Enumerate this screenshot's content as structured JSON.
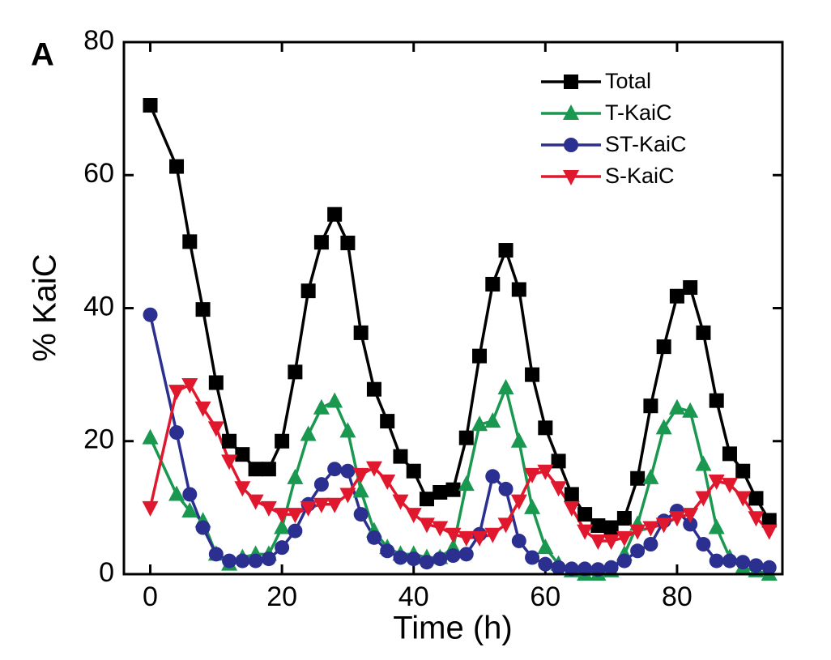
{
  "chart_data": {
    "type": "line",
    "panel_label": "A",
    "x_label": "Time (h)",
    "y_label": "% KaiC",
    "xlim": [
      -4,
      96
    ],
    "ylim": [
      0,
      80
    ],
    "xticks": [
      0,
      20,
      40,
      60,
      80
    ],
    "yticks": [
      0,
      20,
      40,
      60,
      80
    ],
    "legend": "upper right",
    "x": [
      0,
      4,
      6,
      8,
      10,
      12,
      14,
      16,
      18,
      20,
      22,
      24,
      26,
      28,
      30,
      32,
      34,
      36,
      38,
      40,
      42,
      44,
      46,
      48,
      50,
      52,
      54,
      56,
      58,
      60,
      62,
      64,
      66,
      68,
      70,
      72,
      74,
      76,
      78,
      80,
      82,
      84,
      86,
      88,
      90,
      92,
      94
    ],
    "series": [
      {
        "name": "Total",
        "color": "#000000",
        "marker": "square",
        "values": [
          70.5,
          61.3,
          50,
          39.8,
          28.8,
          20,
          18,
          15.8,
          15.8,
          20,
          30.4,
          42.6,
          49.9,
          54.1,
          49.8,
          36.3,
          27.8,
          23,
          17.7,
          15.5,
          11.3,
          12.3,
          12.7,
          20.5,
          32.8,
          43.6,
          48.7,
          42.8,
          30,
          22,
          17,
          12,
          9,
          7.3,
          7,
          8.4,
          14.4,
          25.3,
          34.2,
          41.8,
          43.1,
          36.3,
          26.1,
          18.1,
          15.5,
          11.4,
          8.1
        ]
      },
      {
        "name": "T-KaiC",
        "color": "#1a9850",
        "marker": "triangle-up",
        "values": [
          20.5,
          12,
          9.5,
          8,
          3,
          1.5,
          2.5,
          3,
          3,
          7,
          14.5,
          21,
          25,
          26,
          21.5,
          12.5,
          6.5,
          4,
          3,
          3,
          2.5,
          2.5,
          4,
          13.5,
          22.5,
          23,
          28,
          20,
          10,
          4,
          1.5,
          0.5,
          0,
          0,
          0.5,
          3,
          7.5,
          14.5,
          22,
          25,
          24.5,
          16.5,
          7,
          2.5,
          1,
          0.5,
          0
        ]
      },
      {
        "name": "ST-KaiC",
        "color": "#2b2f8f",
        "marker": "circle",
        "values": [
          39,
          21.3,
          12,
          7,
          3,
          2,
          2,
          2,
          2.3,
          4,
          6.5,
          10.5,
          13.5,
          15.8,
          15.5,
          9,
          5.5,
          3.5,
          2.5,
          2.3,
          1.8,
          2.3,
          2.8,
          3,
          6,
          14.7,
          12.8,
          5,
          2.5,
          1.5,
          1,
          0.8,
          0.8,
          0.7,
          1,
          2,
          3.5,
          4.5,
          8,
          9.5,
          7.5,
          4.5,
          2,
          2,
          1.8,
          1.3,
          1
        ]
      },
      {
        "name": "S-KaiC",
        "color": "#e0182d",
        "marker": "triangle-down",
        "values": [
          10,
          27.5,
          28.5,
          25,
          22,
          17,
          13,
          11,
          10,
          9,
          9,
          10,
          10.5,
          10.5,
          12,
          15,
          16,
          14,
          11,
          9,
          7.5,
          7,
          6,
          5.5,
          5.5,
          6,
          7.5,
          11,
          15,
          15.5,
          13,
          10,
          6.5,
          5,
          5,
          5.5,
          6.5,
          7,
          7.5,
          8.5,
          9,
          11.5,
          14,
          13.5,
          11.5,
          8.5,
          6.5
        ]
      }
    ]
  }
}
